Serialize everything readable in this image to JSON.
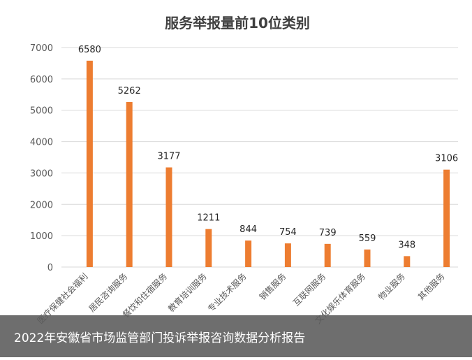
{
  "chart_data": {
    "type": "bar",
    "title": "服务举报量前10位类别",
    "xlabel": "",
    "ylabel": "",
    "ylim": [
      0,
      7000
    ],
    "yticks": [
      0,
      1000,
      2000,
      3000,
      4000,
      5000,
      6000,
      7000
    ],
    "grid": true,
    "legend": "none",
    "categories": [
      "医疗保健社会福利",
      "居民咨询服务",
      "餐饮和住宿服务",
      "教育培训服务",
      "专业技术服务",
      "销售服务",
      "互联网服务",
      "文化娱乐体育服务",
      "物业服务",
      "其他服务"
    ],
    "series": [
      {
        "values": [
          6580,
          5262,
          3177,
          1211,
          844,
          754,
          739,
          559,
          348,
          3106
        ],
        "color": "#ed7d31"
      }
    ],
    "data_labels": [
      "6580",
      "5262",
      "3177",
      "1211",
      "844",
      "754",
      "739",
      "559",
      "348",
      "3106"
    ],
    "bar_color": "#ed7d31",
    "grid_color": "#d9d9d9"
  },
  "caption": "2022年安徽省市场监管部门投诉举报咨询数据分析报告"
}
